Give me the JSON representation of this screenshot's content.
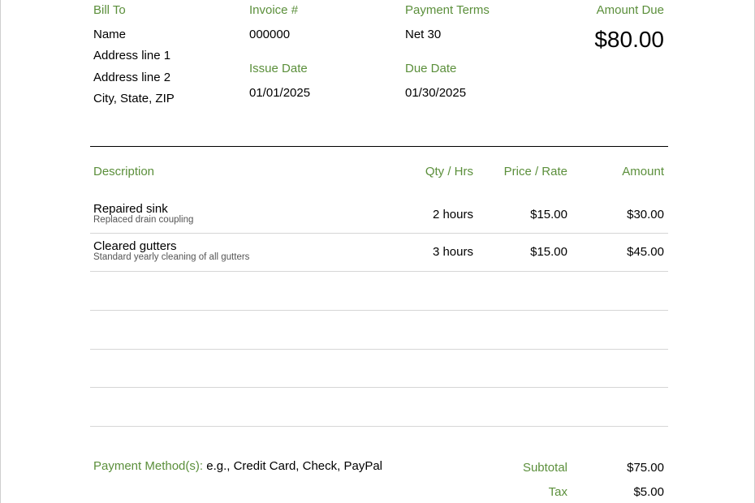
{
  "header": {
    "bill_to": {
      "label": "Bill To",
      "lines": [
        "Name",
        "Address line 1",
        "Address line 2",
        "City, State, ZIP"
      ]
    },
    "invoice_number": {
      "label": "Invoice #",
      "value": "000000"
    },
    "issue_date": {
      "label": "Issue Date",
      "value": "01/01/2025"
    },
    "payment_terms": {
      "label": "Payment Terms",
      "value": "Net 30"
    },
    "due_date": {
      "label": "Due Date",
      "value": "01/30/2025"
    },
    "amount_due": {
      "label": "Amount Due",
      "value": "$80.00"
    }
  },
  "table": {
    "columns": [
      "Description",
      "Qty / Hrs",
      "Price / Rate",
      "Amount"
    ],
    "rows": [
      {
        "description": "Repaired sink",
        "detail": "Replaced drain coupling",
        "qty": "2 hours",
        "price": "$15.00",
        "amount": "$30.00"
      },
      {
        "description": "Cleared gutters",
        "detail": "Standard yearly cleaning of all gutters",
        "qty": "3 hours",
        "price": "$15.00",
        "amount": "$45.00"
      }
    ]
  },
  "footer": {
    "payment_methods_label": "Payment Method(s):",
    "payment_methods_value": "e.g., Credit Card, Check, PayPal",
    "subtotal_label": "Subtotal",
    "subtotal_value": "$75.00",
    "tax_label": "Tax",
    "tax_value": "$5.00"
  },
  "colors": {
    "accent": "#5b8f3b",
    "text": "#000000",
    "rule": "#d6d6d6"
  }
}
